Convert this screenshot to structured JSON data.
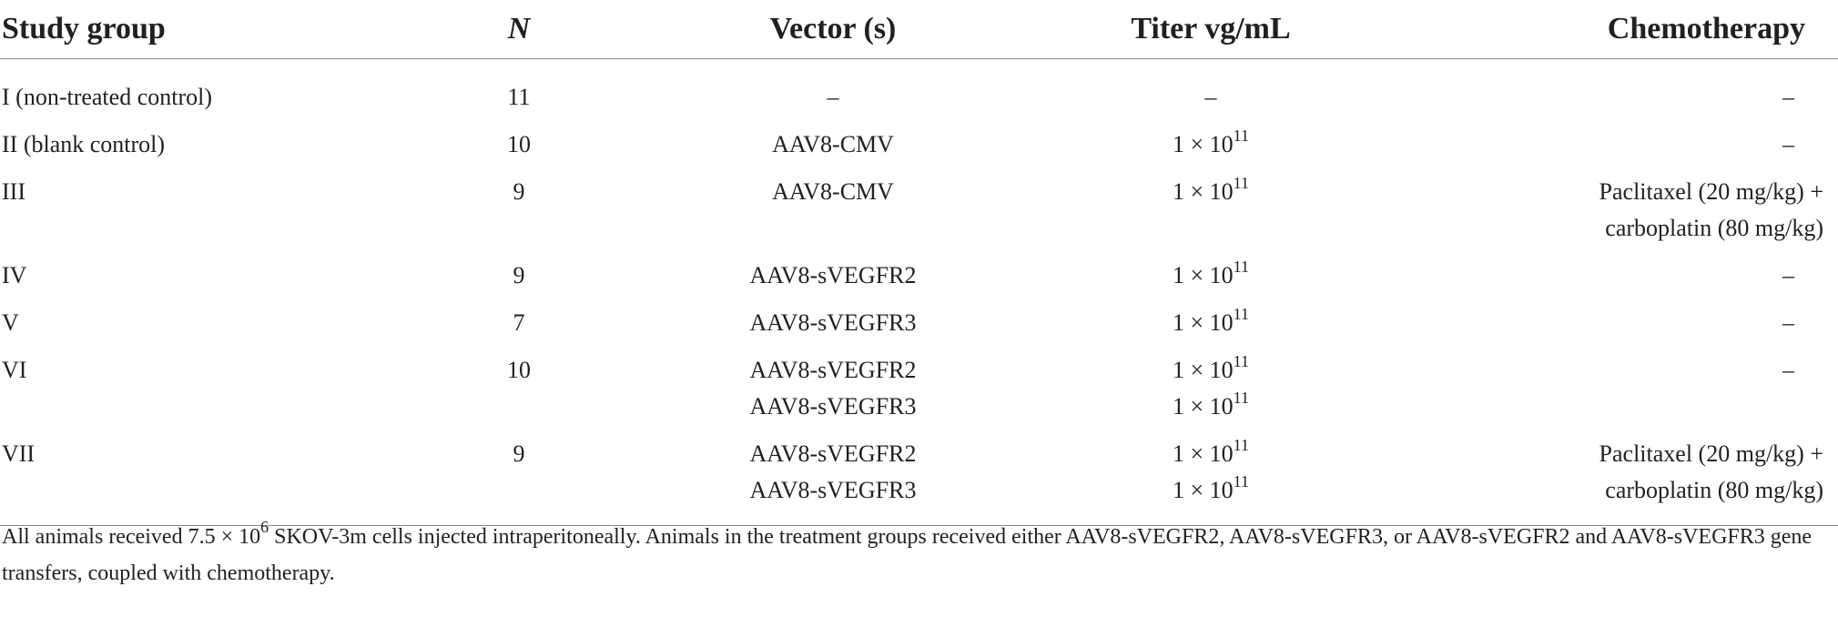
{
  "table": {
    "headers": {
      "study_group": "Study group",
      "n": "N",
      "vectors": "Vector (s)",
      "titer": "Titer vg/mL",
      "chemo": "Chemotherapy"
    },
    "rows": [
      {
        "group": "I (non-treated control)",
        "n": "11",
        "vectors": [
          "–"
        ],
        "titers": [
          {
            "text": "–"
          }
        ],
        "chemo": [
          "–"
        ]
      },
      {
        "group": "II (blank control)",
        "n": "10",
        "vectors": [
          "AAV8-CMV"
        ],
        "titers": [
          {
            "base": "1 × 10",
            "exp": "11"
          }
        ],
        "chemo": [
          "–"
        ]
      },
      {
        "group": "III",
        "n": "9",
        "vectors": [
          "AAV8-CMV"
        ],
        "titers": [
          {
            "base": "1 × 10",
            "exp": "11"
          }
        ],
        "chemo": [
          "Paclitaxel (20 mg/kg) +",
          "carboplatin (80 mg/kg)"
        ]
      },
      {
        "group": "IV",
        "n": "9",
        "vectors": [
          "AAV8-sVEGFR2"
        ],
        "titers": [
          {
            "base": "1 × 10",
            "exp": "11"
          }
        ],
        "chemo": [
          "–"
        ]
      },
      {
        "group": "V",
        "n": "7",
        "vectors": [
          "AAV8-sVEGFR3"
        ],
        "titers": [
          {
            "base": "1 × 10",
            "exp": "11"
          }
        ],
        "chemo": [
          "–"
        ]
      },
      {
        "group": "VI",
        "n": "10",
        "vectors": [
          "AAV8-sVEGFR2",
          "AAV8-sVEGFR3"
        ],
        "titers": [
          {
            "base": "1 × 10",
            "exp": "11"
          },
          {
            "base": "1 × 10",
            "exp": "11"
          }
        ],
        "chemo": [
          "–"
        ]
      },
      {
        "group": "VII",
        "n": "9",
        "vectors": [
          "AAV8-sVEGFR2",
          "AAV8-sVEGFR3"
        ],
        "titers": [
          {
            "base": "1 × 10",
            "exp": "11"
          },
          {
            "base": "1 × 10",
            "exp": "11"
          }
        ],
        "chemo": [
          "Paclitaxel (20 mg/kg) +",
          "carboplatin (80 mg/kg)"
        ]
      }
    ]
  },
  "footnote": {
    "part1": "All animals received 7.5 × 10",
    "exp": "6",
    "part2": " SKOV-3m cells injected intraperitoneally. Animals in the treatment groups received either AAV8-sVEGFR2, AAV8-sVEGFR3, or AAV8-sVEGFR2 and AAV8-sVEGFR3 gene transfers, coupled with chemotherapy."
  }
}
